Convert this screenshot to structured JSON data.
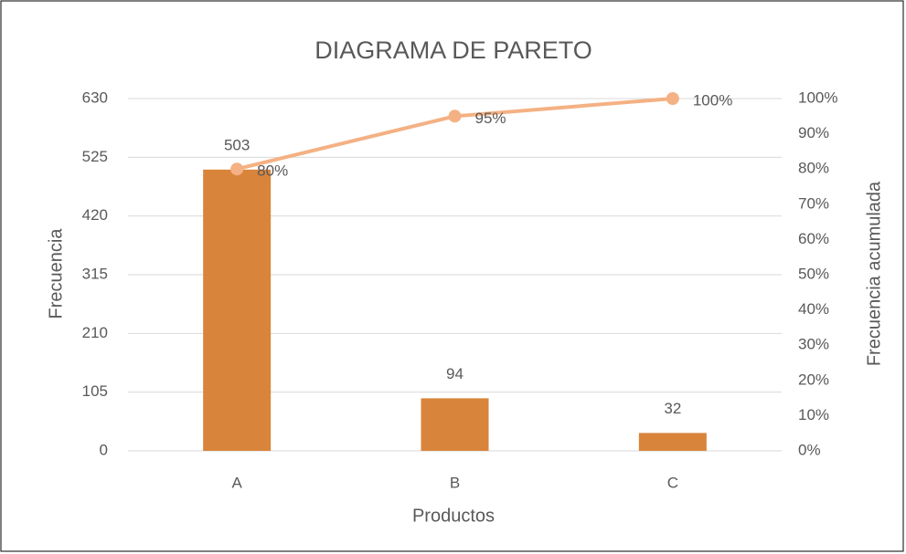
{
  "chart_data": {
    "type": "pareto",
    "title": "DIAGRAMA DE PARETO",
    "x_label": "Productos",
    "y_label": "Frecuencia",
    "y2_label": "Frecuencia acumulada",
    "categories": [
      "A",
      "B",
      "C"
    ],
    "series": [
      {
        "type": "bar",
        "color": "#d9843b",
        "values": [
          503,
          94,
          32
        ],
        "axis": "y"
      },
      {
        "type": "line",
        "color": "#f4b183",
        "values": [
          80,
          95,
          100
        ],
        "value_labels": [
          "80%",
          "95%",
          "100%"
        ],
        "axis": "y2"
      }
    ],
    "ylim": [
      0,
      630
    ],
    "yticks": [
      0,
      105,
      210,
      315,
      420,
      525,
      630
    ],
    "y2lim": [
      0,
      100
    ],
    "y2ticks": [
      {
        "value": 0,
        "label": "0%"
      },
      {
        "value": 10,
        "label": "10%"
      },
      {
        "value": 20,
        "label": "20%"
      },
      {
        "value": 30,
        "label": "30%"
      },
      {
        "value": 40,
        "label": "40%"
      },
      {
        "value": 50,
        "label": "50%"
      },
      {
        "value": 60,
        "label": "60%"
      },
      {
        "value": 70,
        "label": "70%"
      },
      {
        "value": 80,
        "label": "80%"
      },
      {
        "value": 90,
        "label": "90%"
      },
      {
        "value": 100,
        "label": "100%"
      }
    ],
    "grid": true
  }
}
